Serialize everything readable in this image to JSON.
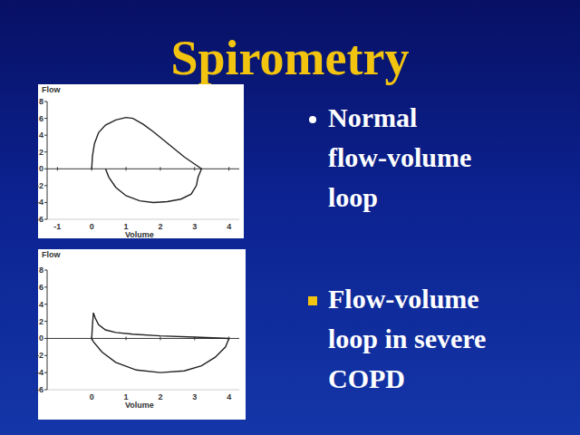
{
  "slide": {
    "title": "Spirometry",
    "bullets": [
      {
        "lines": [
          "Normal",
          "flow-volume",
          "loop"
        ],
        "marker": "circle",
        "color": "#ffffff"
      },
      {
        "lines": [
          "Flow-volume",
          "loop in severe",
          "COPD"
        ],
        "marker": "square",
        "color": "#f2c40f"
      }
    ]
  },
  "chart_data": [
    {
      "type": "line",
      "x_label": "Volume",
      "y_label": "Flow",
      "xlim": [
        -1.3,
        4.3
      ],
      "ylim": [
        -6,
        8
      ],
      "xticks": [
        -1,
        0,
        1,
        2,
        3,
        4
      ],
      "yticks": [
        -6,
        -4,
        -2,
        0,
        2,
        4,
        6,
        8
      ],
      "color": "#222222",
      "x": [
        0,
        0.02,
        0.08,
        0.2,
        0.4,
        0.7,
        1.0,
        1.2,
        1.5,
        1.8,
        2.1,
        2.4,
        2.7,
        2.95,
        3.2,
        3.1,
        3.05,
        2.9,
        2.6,
        2.2,
        1.8,
        1.4,
        1.0,
        0.7,
        0.5,
        0.4
      ],
      "values": [
        0,
        1.5,
        3,
        4.3,
        5.2,
        5.8,
        6.1,
        6.0,
        5.3,
        4.4,
        3.4,
        2.4,
        1.4,
        0.7,
        0,
        -1,
        -2,
        -3,
        -3.6,
        -3.9,
        -4.0,
        -3.8,
        -3.2,
        -2.2,
        -1,
        0
      ]
    },
    {
      "type": "line",
      "x_label": "Volume",
      "y_label": "Flow",
      "xlim": [
        -1.3,
        4.3
      ],
      "ylim": [
        -6,
        8
      ],
      "xticks": [
        0,
        1,
        2,
        3,
        4
      ],
      "yticks": [
        -6,
        -4,
        -2,
        0,
        2,
        4,
        6,
        8
      ],
      "color": "#222222",
      "x": [
        0,
        0.02,
        0.05,
        0.1,
        0.2,
        0.4,
        0.7,
        1.2,
        2,
        3,
        4,
        3.9,
        3.6,
        3.2,
        2.7,
        2,
        1.3,
        0.7,
        0.3,
        0.05,
        0
      ],
      "values": [
        0,
        1.5,
        3,
        2.4,
        1.6,
        1.0,
        0.7,
        0.5,
        0.3,
        0.15,
        0,
        -1,
        -2.2,
        -3.2,
        -3.8,
        -4,
        -3.7,
        -2.8,
        -1.6,
        -0.4,
        0
      ]
    }
  ]
}
